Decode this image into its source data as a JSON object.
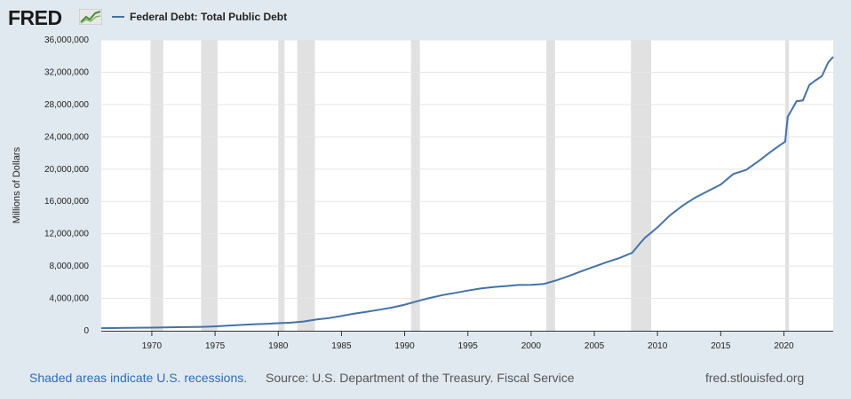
{
  "header": {
    "logo_text": "FRED",
    "logo_icon": "line-chart-icon",
    "legend_label": "Federal Debt: Total Public Debt"
  },
  "footer": {
    "recession_note": "Shaded areas indicate U.S. recessions.",
    "source": "Source: U.S. Department of the Treasury. Fiscal Service",
    "site": "fred.stlouisfed.org"
  },
  "colors": {
    "line": "#4572a7",
    "recession": "#e1e1e1",
    "grid": "#e6e6e6",
    "background": "#e1e9f0",
    "plot_background": "#ffffff"
  },
  "chart_data": {
    "type": "line",
    "title": "",
    "xlabel": "",
    "ylabel": "Millions of Dollars",
    "xlim": [
      1966,
      2023.9
    ],
    "ylim": [
      0,
      36000000
    ],
    "grid": true,
    "legend": "top-left",
    "x_ticks": [
      1970,
      1975,
      1980,
      1985,
      1990,
      1995,
      2000,
      2005,
      2010,
      2015,
      2020
    ],
    "y_ticks": [
      0,
      4000000,
      8000000,
      12000000,
      16000000,
      20000000,
      24000000,
      28000000,
      32000000,
      36000000
    ],
    "y_tick_labels": [
      "0",
      "4,000,000",
      "8,000,000",
      "12,000,000",
      "16,000,000",
      "20,000,000",
      "24,000,000",
      "28,000,000",
      "32,000,000",
      "36,000,000"
    ],
    "recessions": [
      [
        1969.9,
        1970.9
      ],
      [
        1973.9,
        1975.2
      ],
      [
        1980.0,
        1980.5
      ],
      [
        1981.5,
        1982.9
      ],
      [
        1990.5,
        1991.2
      ],
      [
        2001.2,
        2001.9
      ],
      [
        2007.9,
        2009.5
      ],
      [
        2020.1,
        2020.4
      ]
    ],
    "series": [
      {
        "name": "Federal Debt: Total Public Debt",
        "points": [
          [
            1966.0,
            320000
          ],
          [
            1968.0,
            348000
          ],
          [
            1970.0,
            381000
          ],
          [
            1972.0,
            436000
          ],
          [
            1974.0,
            484000
          ],
          [
            1975.0,
            541000
          ],
          [
            1976.0,
            630000
          ],
          [
            1977.0,
            710000
          ],
          [
            1978.0,
            790000
          ],
          [
            1979.0,
            840000
          ],
          [
            1980.0,
            930000
          ],
          [
            1981.0,
            1000000
          ],
          [
            1982.0,
            1140000
          ],
          [
            1983.0,
            1380000
          ],
          [
            1984.0,
            1570000
          ],
          [
            1985.0,
            1820000
          ],
          [
            1986.0,
            2120000
          ],
          [
            1987.0,
            2350000
          ],
          [
            1988.0,
            2600000
          ],
          [
            1989.0,
            2860000
          ],
          [
            1990.0,
            3230000
          ],
          [
            1991.0,
            3660000
          ],
          [
            1992.0,
            4060000
          ],
          [
            1993.0,
            4410000
          ],
          [
            1994.0,
            4690000
          ],
          [
            1995.0,
            4970000
          ],
          [
            1996.0,
            5220000
          ],
          [
            1997.0,
            5410000
          ],
          [
            1998.0,
            5530000
          ],
          [
            1999.0,
            5660000
          ],
          [
            2000.0,
            5670000
          ],
          [
            2001.0,
            5800000
          ],
          [
            2002.0,
            6230000
          ],
          [
            2003.0,
            6780000
          ],
          [
            2004.0,
            7380000
          ],
          [
            2005.0,
            7930000
          ],
          [
            2006.0,
            8500000
          ],
          [
            2007.0,
            9010000
          ],
          [
            2008.0,
            9650000
          ],
          [
            2008.6,
            10800000
          ],
          [
            2009.0,
            11500000
          ],
          [
            2010.0,
            12800000
          ],
          [
            2011.0,
            14300000
          ],
          [
            2012.0,
            15500000
          ],
          [
            2013.0,
            16500000
          ],
          [
            2014.0,
            17300000
          ],
          [
            2015.0,
            18100000
          ],
          [
            2016.0,
            19400000
          ],
          [
            2017.0,
            19900000
          ],
          [
            2018.0,
            21000000
          ],
          [
            2019.0,
            22200000
          ],
          [
            2019.9,
            23200000
          ],
          [
            2020.1,
            23400000
          ],
          [
            2020.3,
            26500000
          ],
          [
            2021.0,
            28400000
          ],
          [
            2021.5,
            28500000
          ],
          [
            2022.0,
            30400000
          ],
          [
            2022.5,
            31000000
          ],
          [
            2023.0,
            31500000
          ],
          [
            2023.5,
            33200000
          ],
          [
            2023.9,
            33900000
          ]
        ]
      }
    ]
  }
}
